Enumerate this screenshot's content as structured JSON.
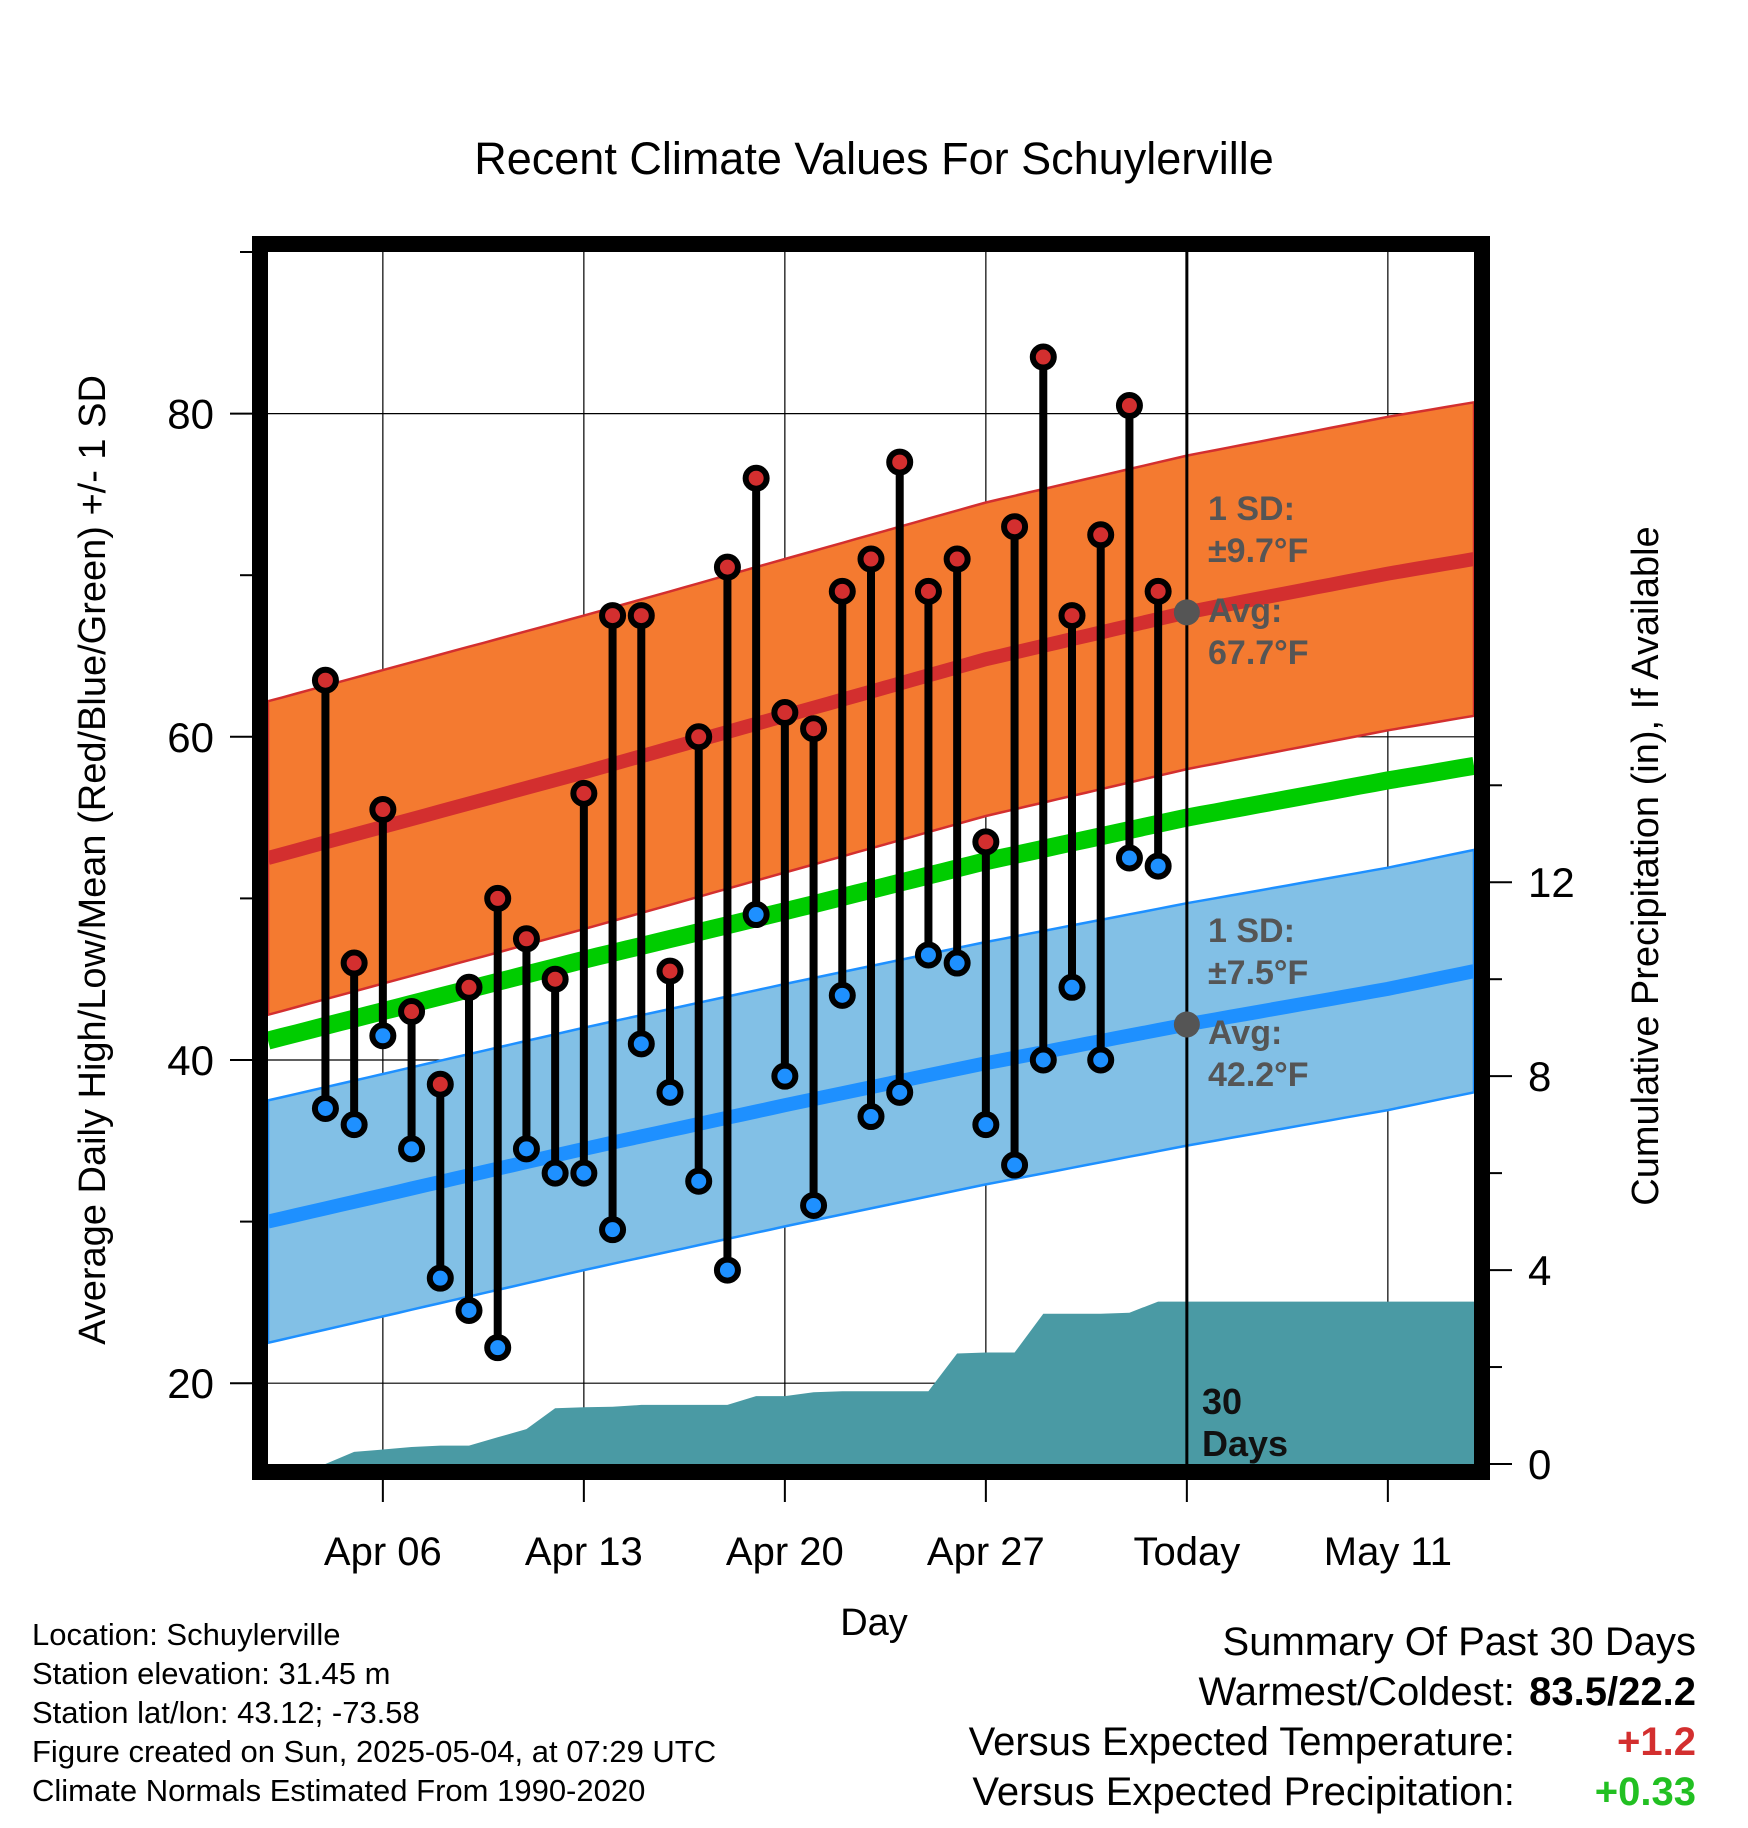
{
  "chart_data": {
    "type": "line",
    "title": "Recent Climate Values For Schuylerville",
    "xlabel": "Day",
    "ylabel": "Average Daily High/Low/Mean (Red/Blue/Green) +/- 1 SD",
    "y2label": "Cumulative Precipitation (in), If Available",
    "x_range": [
      "2025-04-02",
      "2025-05-14"
    ],
    "ylim": [
      15,
      90
    ],
    "y2lim": [
      0,
      25
    ],
    "y_ticks": [
      20,
      40,
      60,
      80
    ],
    "y2_ticks": [
      0,
      4,
      8,
      12
    ],
    "x_ticks": [
      {
        "date": "2025-04-06",
        "label": "Apr 06"
      },
      {
        "date": "2025-04-13",
        "label": "Apr 13"
      },
      {
        "date": "2025-04-20",
        "label": "Apr 20"
      },
      {
        "date": "2025-04-27",
        "label": "Apr 27"
      },
      {
        "date": "2025-05-04",
        "label": "Today"
      },
      {
        "date": "2025-05-11",
        "label": "May 11"
      }
    ],
    "today_date": "2025-05-04",
    "daily": [
      {
        "date": "2025-04-04",
        "high": 63.5,
        "low": 37.0
      },
      {
        "date": "2025-04-05",
        "high": 46.0,
        "low": 36.0
      },
      {
        "date": "2025-04-06",
        "high": 55.5,
        "low": 41.5
      },
      {
        "date": "2025-04-07",
        "high": 43.0,
        "low": 34.5
      },
      {
        "date": "2025-04-08",
        "high": 38.5,
        "low": 26.5
      },
      {
        "date": "2025-04-09",
        "high": 44.5,
        "low": 24.5
      },
      {
        "date": "2025-04-10",
        "high": 50.0,
        "low": 22.2
      },
      {
        "date": "2025-04-11",
        "high": 47.5,
        "low": 34.5
      },
      {
        "date": "2025-04-12",
        "high": 45.0,
        "low": 33.0
      },
      {
        "date": "2025-04-13",
        "high": 56.5,
        "low": 33.0
      },
      {
        "date": "2025-04-14",
        "high": 67.5,
        "low": 29.5
      },
      {
        "date": "2025-04-15",
        "high": 67.5,
        "low": 41.0
      },
      {
        "date": "2025-04-16",
        "high": 45.5,
        "low": 38.0
      },
      {
        "date": "2025-04-17",
        "high": 60.0,
        "low": 32.5
      },
      {
        "date": "2025-04-18",
        "high": 70.5,
        "low": 27.0
      },
      {
        "date": "2025-04-19",
        "high": 76.0,
        "low": 49.0
      },
      {
        "date": "2025-04-20",
        "high": 61.5,
        "low": 39.0
      },
      {
        "date": "2025-04-21",
        "high": 60.5,
        "low": 31.0
      },
      {
        "date": "2025-04-22",
        "high": 69.0,
        "low": 44.0
      },
      {
        "date": "2025-04-23",
        "high": 71.0,
        "low": 36.5
      },
      {
        "date": "2025-04-24",
        "high": 77.0,
        "low": 38.0
      },
      {
        "date": "2025-04-25",
        "high": 69.0,
        "low": 46.5
      },
      {
        "date": "2025-04-26",
        "high": 71.0,
        "low": 46.0
      },
      {
        "date": "2025-04-27",
        "high": 53.5,
        "low": 36.0
      },
      {
        "date": "2025-04-28",
        "high": 73.0,
        "low": 33.5
      },
      {
        "date": "2025-04-29",
        "high": 83.5,
        "low": 40.0
      },
      {
        "date": "2025-04-30",
        "high": 67.5,
        "low": 44.5
      },
      {
        "date": "2025-05-01",
        "high": 72.5,
        "low": 40.0
      },
      {
        "date": "2025-05-02",
        "high": 80.5,
        "low": 52.5
      },
      {
        "date": "2025-05-03",
        "high": 69.0,
        "low": 52.0
      }
    ],
    "normals": {
      "dates": [
        "2025-04-02",
        "2025-04-13",
        "2025-04-20",
        "2025-04-27",
        "2025-05-04",
        "2025-05-11",
        "2025-05-14"
      ],
      "avg_high": [
        52.5,
        57.8,
        61.3,
        64.8,
        67.7,
        70.1,
        71.0
      ],
      "avg_low": [
        30.0,
        34.5,
        37.2,
        39.8,
        42.2,
        44.4,
        45.5
      ],
      "avg_mean": [
        41.2,
        46.2,
        49.2,
        52.3,
        55.0,
        57.3,
        58.2
      ],
      "high_sd": 9.7,
      "low_sd": 7.5
    },
    "precipitation": {
      "dates": [
        "2025-04-03",
        "2025-04-04",
        "2025-04-05",
        "2025-04-06",
        "2025-04-07",
        "2025-04-08",
        "2025-04-09",
        "2025-04-10",
        "2025-04-11",
        "2025-04-12",
        "2025-04-13",
        "2025-04-14",
        "2025-04-15",
        "2025-04-16",
        "2025-04-17",
        "2025-04-18",
        "2025-04-19",
        "2025-04-20",
        "2025-04-21",
        "2025-04-22",
        "2025-04-23",
        "2025-04-24",
        "2025-04-25",
        "2025-04-26",
        "2025-04-27",
        "2025-04-28",
        "2025-04-29",
        "2025-04-30",
        "2025-05-01",
        "2025-05-02",
        "2025-05-03",
        "2025-05-14"
      ],
      "cumulative": [
        0.0,
        0.0,
        0.25,
        0.3,
        0.35,
        0.38,
        0.38,
        0.55,
        0.72,
        1.15,
        1.17,
        1.18,
        1.22,
        1.22,
        1.22,
        1.22,
        1.4,
        1.4,
        1.48,
        1.5,
        1.5,
        1.5,
        1.5,
        2.28,
        2.3,
        2.3,
        3.1,
        3.1,
        3.1,
        3.12,
        3.35,
        3.35
      ]
    },
    "annotations": {
      "high_sd_label": "1 SD:",
      "high_sd_value": "±9.7°F",
      "high_avg_label": "Avg:",
      "high_avg_value": "67.7°F",
      "low_sd_label": "1 SD:",
      "low_sd_value": "±7.5°F",
      "low_avg_label": "Avg:",
      "low_avg_value": "42.2°F",
      "days_line1": "30",
      "days_line2": "Days"
    },
    "colors": {
      "high": "#d32f2f",
      "high_band": "#f47a30",
      "low": "#1e90ff",
      "low_band": "#82c0e6",
      "mean": "#00cc00",
      "precip": "#4a9aa4"
    }
  },
  "footer": {
    "location": "Location: Schuylerville",
    "elevation": "Station elevation: 31.45 m",
    "latlon": "Station lat/lon: 43.12; -73.58",
    "created": "Figure created on Sun, 2025-05-04, at 07:29 UTC",
    "normals": "Climate Normals Estimated From 1990-2020"
  },
  "summary": {
    "title": "Summary Of Past 30 Days",
    "warmest_label": "Warmest/Coldest:",
    "warmest_value": "83.5/22.2",
    "temp_label": "Versus Expected Temperature:",
    "temp_value": "+1.2",
    "precip_label": "Versus Expected Precipitation:",
    "precip_value": "+0.33"
  }
}
